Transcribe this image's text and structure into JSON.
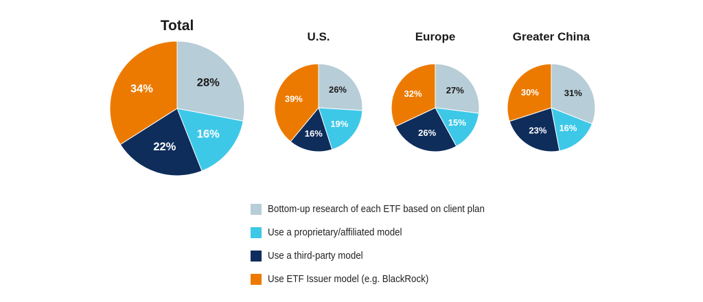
{
  "colors": {
    "bottom_up": "#b7cdd7",
    "proprietary": "#3ec8e8",
    "third_party": "#0e2d5b",
    "issuer": "#ec7a00"
  },
  "chart_data": [
    {
      "type": "pie",
      "title": "Total",
      "slices": [
        {
          "category": "Bottom-up research of each ETF based on client plan",
          "value": 28,
          "label": "28%"
        },
        {
          "category": "Use a proprietary/affiliated model",
          "value": 16,
          "label": "16%"
        },
        {
          "category": "Use a third-party model",
          "value": 22,
          "label": "22%"
        },
        {
          "category": "Use ETF Issuer model (e.g. BlackRock)",
          "value": 34,
          "label": "34%"
        }
      ]
    },
    {
      "type": "pie",
      "title": "U.S.",
      "slices": [
        {
          "category": "Bottom-up research of each ETF based on client plan",
          "value": 26,
          "label": "26%"
        },
        {
          "category": "Use a proprietary/affiliated model",
          "value": 19,
          "label": "19%"
        },
        {
          "category": "Use a third-party model",
          "value": 16,
          "label": "16%"
        },
        {
          "category": "Use ETF Issuer model (e.g. BlackRock)",
          "value": 39,
          "label": "39%"
        }
      ]
    },
    {
      "type": "pie",
      "title": "Europe",
      "slices": [
        {
          "category": "Bottom-up research of each ETF based on client plan",
          "value": 27,
          "label": "27%"
        },
        {
          "category": "Use a proprietary/affiliated model",
          "value": 15,
          "label": "15%"
        },
        {
          "category": "Use a third-party model",
          "value": 26,
          "label": "26%"
        },
        {
          "category": "Use ETF Issuer model (e.g. BlackRock)",
          "value": 32,
          "label": "32%"
        }
      ]
    },
    {
      "type": "pie",
      "title": "Greater China",
      "slices": [
        {
          "category": "Bottom-up research of each ETF based on client plan",
          "value": 31,
          "label": "31%"
        },
        {
          "category": "Use a proprietary/affiliated model",
          "value": 16,
          "label": "16%"
        },
        {
          "category": "Use a third-party model",
          "value": 23,
          "label": "23%"
        },
        {
          "category": "Use ETF Issuer model (e.g. BlackRock)",
          "value": 30,
          "label": "30%"
        }
      ]
    }
  ],
  "legend": {
    "placement": "bottom-center",
    "items": [
      {
        "label": "Bottom-up research of each ETF based on client plan",
        "color": "#b7cdd7"
      },
      {
        "label": "Use a proprietary/affiliated model",
        "color": "#3ec8e8"
      },
      {
        "label": "Use a third-party model",
        "color": "#0e2d5b"
      },
      {
        "label": "Use ETF Issuer model (e.g. BlackRock)",
        "color": "#ec7a00"
      }
    ]
  }
}
